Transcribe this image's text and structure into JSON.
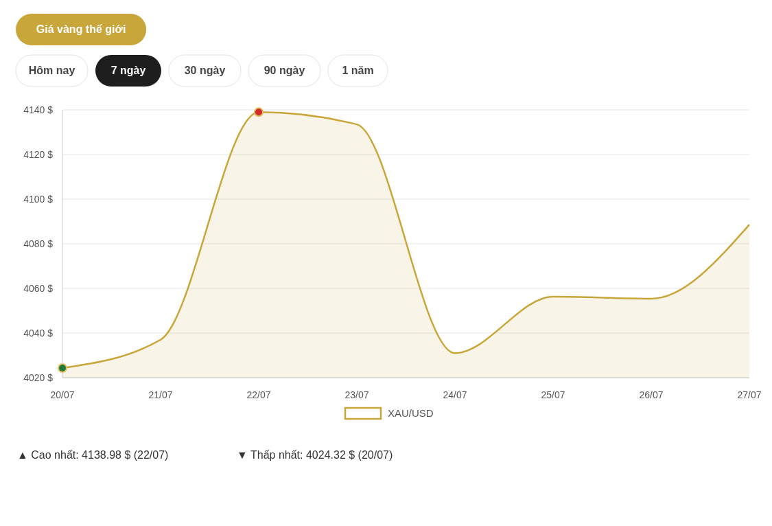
{
  "chart_data": {
    "type": "area",
    "categories": [
      "20/07",
      "21/07",
      "22/07",
      "23/07",
      "24/07",
      "25/07",
      "26/07",
      "27/07"
    ],
    "series": [
      {
        "name": "XAU/USD",
        "color": "#c9a63a",
        "values": [
          4024.32,
          4037,
          4138.98,
          4133.5,
          4031,
          4056.3,
          4055.4,
          4088.6
        ]
      }
    ],
    "ylim": [
      4020,
      4140
    ],
    "yticks": [
      {
        "value": 4020,
        "label": "4020 $"
      },
      {
        "value": 4040,
        "label": "4040 $"
      },
      {
        "value": 4060,
        "label": "4060 $"
      },
      {
        "value": 4080,
        "label": "4080 $"
      },
      {
        "value": 4100,
        "label": "4100 $"
      },
      {
        "value": 4120,
        "label": "4120 $"
      },
      {
        "value": 4140,
        "label": "4140 $"
      }
    ],
    "grid": "y",
    "legend": "bottom",
    "annotations": [
      "Giá vàng thế giới",
      "Hôm nay",
      "7 ngày",
      "30 ngày",
      "90 ngày",
      "1 năm",
      "▲ Cao nhất: 4138.98 $ (22/07)",
      "▼ Thấp nhất: 4024.32 $ (20/07)"
    ]
  }
}
